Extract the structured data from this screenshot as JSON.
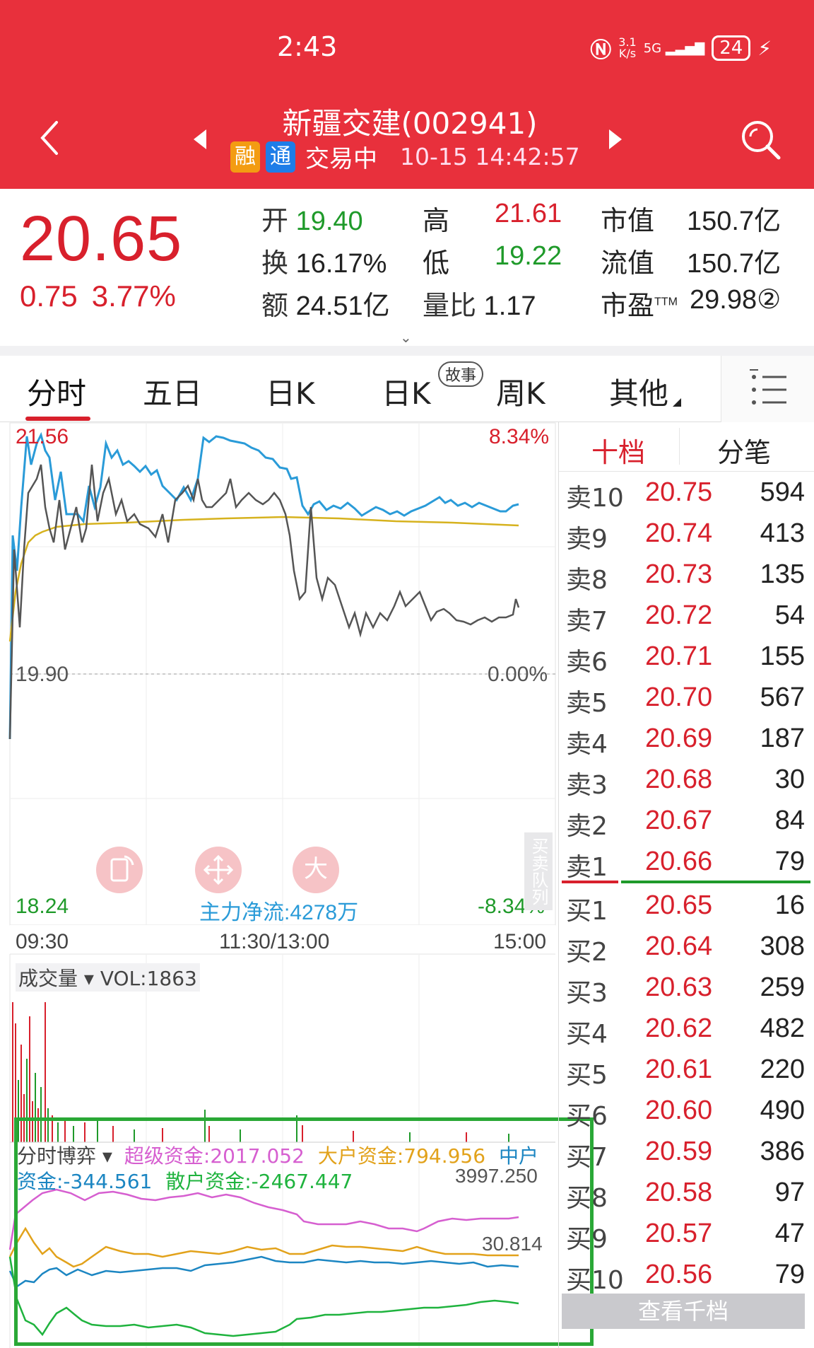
{
  "status_bar": {
    "time": "2:43",
    "net_speed_top": "3.1",
    "net_speed_bottom": "K/s",
    "signal": "5G",
    "battery": "24"
  },
  "header": {
    "title": "新疆交建(002941)",
    "badge_rong": "融",
    "badge_tong": "通",
    "trade_status": "交易中",
    "datetime": "10-15 14:42:57"
  },
  "quote": {
    "price": "20.65",
    "change": "0.75",
    "change_pct": "3.77%",
    "open_label": "开",
    "open": "19.40",
    "high_label": "高",
    "high": "21.61",
    "mktcap_label": "市值",
    "mktcap": "150.7亿",
    "turnover_label": "换",
    "turnover": "16.17%",
    "low_label": "低",
    "low": "19.22",
    "float_label": "流值",
    "float_cap": "150.7亿",
    "amount_label": "额",
    "amount": "24.51亿",
    "volratio_label": "量比",
    "volratio": "1.17",
    "pe_label": "市盈",
    "pe_sup": "TTM",
    "pe": "29.98②"
  },
  "tabs": [
    {
      "label": "分时",
      "active": true
    },
    {
      "label": "五日"
    },
    {
      "label": "日K"
    },
    {
      "label": "日K",
      "badge": "故事"
    },
    {
      "label": "周K"
    },
    {
      "label": "其他"
    }
  ],
  "intraday": {
    "high_price": "21.56",
    "high_pct": "8.34%",
    "ref_price": "19.90",
    "ref_pct": "0.00%",
    "low_price": "18.24",
    "low_pct": "-8.34%",
    "net_flow": "主力净流:4278万",
    "time_start": "09:30",
    "time_mid": "11:30/13:00",
    "time_end": "15:00",
    "queue_tag": "买卖队列",
    "btn_big": "大"
  },
  "volume": {
    "label": "成交量",
    "vol": "VOL:1863"
  },
  "game": {
    "label": "分时博弈",
    "super": "超级资金:2017.052",
    "large": "大户资金:794.956",
    "mid": "中户资金:-344.561",
    "retail": "散户资金:-2467.447",
    "axis_top": "3997.250",
    "axis_mid": "30.814",
    "colors": {
      "super": "#d65fd0",
      "large": "#e2a21b",
      "mid": "#1c86c2",
      "retail": "#1fb33e"
    }
  },
  "orderbook": {
    "tab_depth": "十档",
    "tab_ticks": "分笔",
    "asks": [
      {
        "label": "卖10",
        "price": "20.75",
        "vol": "594"
      },
      {
        "label": "卖9",
        "price": "20.74",
        "vol": "413"
      },
      {
        "label": "卖8",
        "price": "20.73",
        "vol": "135"
      },
      {
        "label": "卖7",
        "price": "20.72",
        "vol": "54"
      },
      {
        "label": "卖6",
        "price": "20.71",
        "vol": "155"
      },
      {
        "label": "卖5",
        "price": "20.70",
        "vol": "567"
      },
      {
        "label": "卖4",
        "price": "20.69",
        "vol": "187"
      },
      {
        "label": "卖3",
        "price": "20.68",
        "vol": "30"
      },
      {
        "label": "卖2",
        "price": "20.67",
        "vol": "84"
      },
      {
        "label": "卖1",
        "price": "20.66",
        "vol": "79"
      }
    ],
    "bids": [
      {
        "label": "买1",
        "price": "20.65",
        "vol": "16"
      },
      {
        "label": "买2",
        "price": "20.64",
        "vol": "308"
      },
      {
        "label": "买3",
        "price": "20.63",
        "vol": "259"
      },
      {
        "label": "买4",
        "price": "20.62",
        "vol": "482"
      },
      {
        "label": "买5",
        "price": "20.61",
        "vol": "220"
      },
      {
        "label": "买6",
        "price": "20.60",
        "vol": "490"
      },
      {
        "label": "买7",
        "price": "20.59",
        "vol": "386"
      },
      {
        "label": "买8",
        "price": "20.58",
        "vol": "97"
      },
      {
        "label": "买9",
        "price": "20.57",
        "vol": "47"
      },
      {
        "label": "买10",
        "price": "20.56",
        "vol": "79"
      }
    ],
    "more_label": "查看千档"
  },
  "colors": {
    "brand": "#e8303c",
    "up": "#d8202c",
    "down": "#1f9a2a",
    "price_line": "#2a9bd8",
    "avg_line": "#d6b21e"
  }
}
